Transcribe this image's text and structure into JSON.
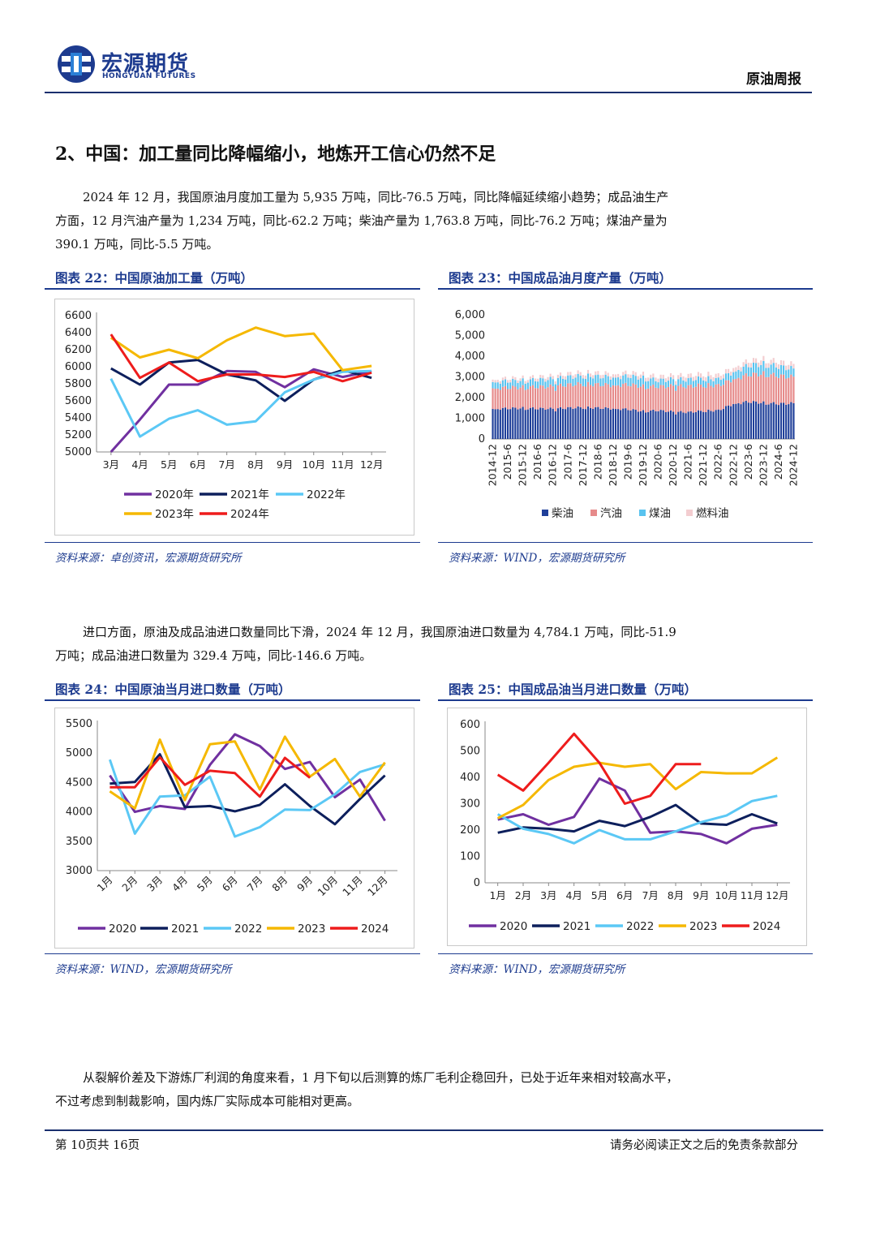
{
  "header": {
    "brand_cn": "宏源期货",
    "brand_en": "HONGYUAN FUTURES",
    "report_name": "原油周报"
  },
  "section_title": "2、中国：加工量同比降幅缩小，地炼开工信心仍然不足",
  "paragraphs": {
    "p1": "2024 年 12 月，我国原油月度加工量为 5,935 万吨，同比-76.5 万吨，同比降幅延续缩小趋势；成品油生产方面，12 月汽油产量为 1,234 万吨，同比-62.2 万吨；柴油产量为 1,763.8 万吨，同比-76.2 万吨；煤油产量为 390.1 万吨，同比-5.5 万吨。",
    "p2": "进口方面，原油及成品油进口数量同比下滑，2024 年 12 月，我国原油进口数量为 4,784.1 万吨，同比-51.9 万吨；成品油进口数量为 329.4 万吨，同比-146.6 万吨。",
    "p3": "从裂解价差及下游炼厂利润的角度来看，1 月下旬以后测算的炼厂毛利企稳回升，已处于近年来相对较高水平，不过考虑到制裁影响，国内炼厂实际成本可能相对更高。"
  },
  "figures": {
    "f22": {
      "title": "图表 22：中国原油加工量（万吨）",
      "source": "资料来源：卓创资讯，宏源期货研究所"
    },
    "f23": {
      "title": "图表 23：中国成品油月度产量（万吨）",
      "source": "资料来源：WIND，宏源期货研究所"
    },
    "f24": {
      "title": "图表 24：中国原油当月进口数量（万吨）",
      "source": "资料来源：WIND，宏源期货研究所"
    },
    "f25": {
      "title": "图表 25：中国成品油当月进口数量（万吨）",
      "source": "资料来源：WIND，宏源期货研究所"
    }
  },
  "footer": {
    "page": "第 10页共 16页",
    "disclaimer": "请务必阅读正文之后的免责条款部分"
  },
  "colors": {
    "2020": "#7030a0",
    "2021": "#0d1f5c",
    "2022": "#5bc8f5",
    "2023": "#f5b800",
    "2024": "#ee1c1c"
  },
  "chart_data": [
    {
      "id": "f22",
      "type": "line",
      "categories": [
        "3月",
        "4月",
        "5月",
        "6月",
        "7月",
        "8月",
        "9月",
        "10月",
        "11月",
        "12月"
      ],
      "ylim": [
        5000,
        6600
      ],
      "yticks": [
        5000,
        5200,
        5400,
        5600,
        5800,
        6000,
        6200,
        6400,
        6600
      ],
      "series": [
        {
          "name": "2020年",
          "values": [
            5000,
            5380,
            5790,
            5790,
            5950,
            5940,
            5760,
            5970,
            5880,
            5950
          ]
        },
        {
          "name": "2021年",
          "values": [
            5980,
            5790,
            6050,
            6080,
            5910,
            5840,
            5600,
            5850,
            5960,
            5870
          ]
        },
        {
          "name": "2022年",
          "values": [
            5860,
            5180,
            5390,
            5490,
            5320,
            5360,
            5700,
            5850,
            5940,
            5950
          ]
        },
        {
          "name": "2023年",
          "values": [
            6340,
            6110,
            6200,
            6100,
            6310,
            6460,
            6360,
            6390,
            5960,
            6010
          ]
        },
        {
          "name": "2024年",
          "values": [
            6380,
            5870,
            6050,
            5830,
            5910,
            5910,
            5880,
            5940,
            5830,
            5930
          ]
        }
      ],
      "legend": [
        "2020年",
        "2021年",
        "2022年",
        "2023年",
        "2024年"
      ]
    },
    {
      "id": "f23",
      "type": "bar",
      "stacked": true,
      "ylim": [
        0,
        6000
      ],
      "yticks": [
        "0",
        "1,000",
        "2,000",
        "3,000",
        "4,000",
        "5,000",
        "6,000"
      ],
      "xtick_labels": [
        "2014-12",
        "2015-6",
        "2015-12",
        "2016-6",
        "2016-12",
        "2017-6",
        "2017-12",
        "2018-6",
        "2018-12",
        "2019-6",
        "2019-12",
        "2020-6",
        "2020-12",
        "2021-6",
        "2021-12",
        "2022-6",
        "2022-12",
        "2023-6",
        "2023-12",
        "2024-6",
        "2024-12"
      ],
      "series_names": [
        "柴油",
        "汽油",
        "煤油",
        "燃料油"
      ],
      "series_colors": [
        "#1f3f99",
        "#e68a8a",
        "#59c3ef",
        "#f3cdd0"
      ],
      "half_year_levels": {
        "柴油": [
          1450,
          1480,
          1490,
          1470,
          1460,
          1500,
          1520,
          1500,
          1470,
          1430,
          1340,
          1380,
          1310,
          1290,
          1360,
          1380,
          1700,
          1800,
          1750,
          1700,
          1720
        ],
        "汽油": [
          1000,
          1000,
          1010,
          1050,
          1080,
          1120,
          1140,
          1130,
          1130,
          1200,
          1200,
          1150,
          1250,
          1250,
          1250,
          1200,
          1200,
          1300,
          1400,
          1350,
          1270
        ],
        "煤油": [
          300,
          320,
          320,
          340,
          350,
          370,
          390,
          390,
          380,
          410,
          410,
          300,
          320,
          330,
          330,
          300,
          350,
          450,
          480,
          450,
          390
        ],
        "燃料油": [
          120,
          130,
          130,
          140,
          150,
          160,
          170,
          170,
          160,
          170,
          180,
          180,
          190,
          200,
          210,
          200,
          200,
          220,
          230,
          230,
          220
        ]
      }
    },
    {
      "id": "f24",
      "type": "line",
      "categories": [
        "1月",
        "2月",
        "3月",
        "4月",
        "5月",
        "6月",
        "7月",
        "8月",
        "9月",
        "10月",
        "11月",
        "12月"
      ],
      "ylim": [
        3000,
        5500
      ],
      "yticks": [
        3000,
        3500,
        4000,
        4500,
        5000,
        5500
      ],
      "series": [
        {
          "name": "2020",
          "values": [
            4620,
            4000,
            4100,
            4050,
            4800,
            5320,
            5120,
            4730,
            4850,
            4250,
            4550,
            3850
          ]
        },
        {
          "name": "2021",
          "values": [
            4480,
            4510,
            4980,
            4080,
            4100,
            4010,
            4120,
            4470,
            4100,
            3790,
            4220,
            4620
          ]
        },
        {
          "name": "2022",
          "values": [
            4890,
            3630,
            4260,
            4280,
            4600,
            3580,
            3740,
            4040,
            4030,
            4300,
            4680,
            4810
          ]
        },
        {
          "name": "2023",
          "values": [
            4350,
            4060,
            5230,
            4200,
            5150,
            5200,
            4380,
            5280,
            4600,
            4900,
            4260,
            4840
          ]
        },
        {
          "name": "2024",
          "values": [
            4420,
            4420,
            4930,
            4460,
            4700,
            4660,
            4260,
            4920,
            4580,
            null,
            null,
            null
          ]
        }
      ],
      "legend": [
        "2020",
        "2021",
        "2022",
        "2023",
        "2024"
      ]
    },
    {
      "id": "f25",
      "type": "line",
      "categories": [
        "1月",
        "2月",
        "3月",
        "4月",
        "5月",
        "6月",
        "7月",
        "8月",
        "9月",
        "10月",
        "11月",
        "12月"
      ],
      "ylim": [
        0,
        600
      ],
      "yticks": [
        0,
        100,
        200,
        300,
        400,
        500,
        600
      ],
      "series": [
        {
          "name": "2020",
          "values": [
            240,
            260,
            220,
            250,
            395,
            350,
            190,
            195,
            185,
            150,
            205,
            220
          ]
        },
        {
          "name": "2021",
          "values": [
            190,
            210,
            205,
            195,
            235,
            215,
            250,
            295,
            225,
            220,
            260,
            225
          ]
        },
        {
          "name": "2022",
          "values": [
            260,
            205,
            185,
            150,
            200,
            165,
            165,
            195,
            230,
            255,
            310,
            330
          ]
        },
        {
          "name": "2023",
          "values": [
            245,
            295,
            390,
            440,
            455,
            440,
            450,
            355,
            420,
            415,
            415,
            475
          ]
        },
        {
          "name": "2024",
          "values": [
            410,
            350,
            455,
            565,
            455,
            300,
            330,
            450,
            450,
            null,
            null,
            null
          ]
        }
      ],
      "legend": [
        "2020",
        "2021",
        "2022",
        "2023",
        "2024"
      ]
    }
  ]
}
